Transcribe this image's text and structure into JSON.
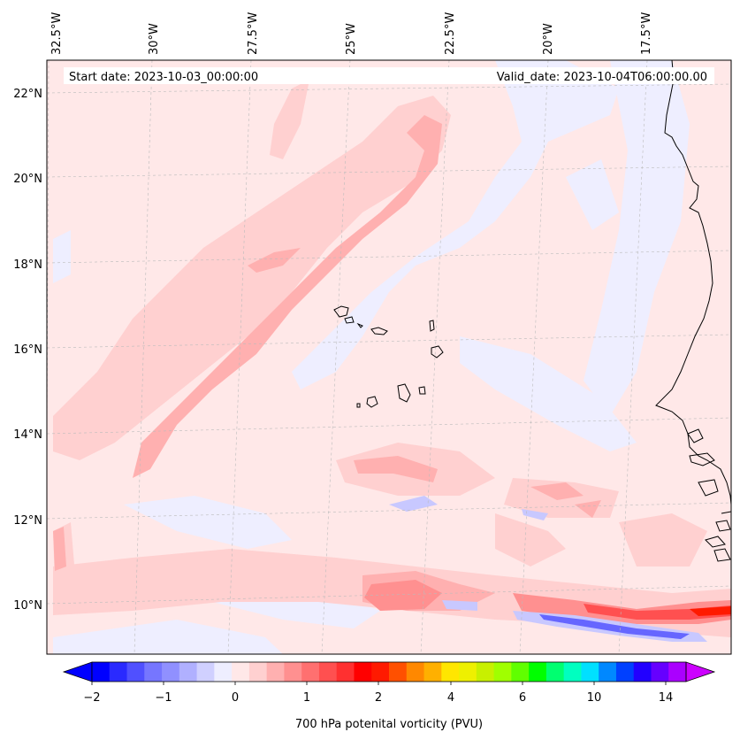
{
  "header": {
    "start_date": "Start date: 2023-10-03_00:00:00",
    "valid_date": "Valid_date: 2023-10-04T06:00:00.00"
  },
  "map": {
    "lon_labels": [
      "32.5°W",
      "30°W",
      "27.5°W",
      "25°W",
      "22.5°W",
      "20°W",
      "17.5°W"
    ],
    "lat_labels": [
      "22°N",
      "20°N",
      "18°N",
      "16°N",
      "14°N",
      "12°N",
      "10°N"
    ],
    "field_colors": {
      "background": "#ffe8e8",
      "light_pink": "#ffd0d0",
      "mid_pink": "#ffb0b0",
      "strong_pink": "#ff9090",
      "red": "#ff5050",
      "light_blue": "#eeeeff",
      "blue": "#c8c8ff",
      "deep_blue": "#6666ff"
    }
  },
  "colorbar": {
    "title": "700 hPa potenital vorticity (PVU)",
    "tick_labels": [
      "-2",
      "−1",
      "0",
      "1",
      "2",
      "4",
      "6",
      "10",
      "14"
    ],
    "tick_display": [
      "−2",
      "−1",
      "0",
      "1",
      "2",
      "4",
      "6",
      "10",
      "14"
    ],
    "colors": [
      "#0000ff",
      "#2a2aff",
      "#5050ff",
      "#7676ff",
      "#9090ff",
      "#b0b0ff",
      "#d0d0ff",
      "#eeeeff",
      "#ffe8e8",
      "#ffd0d0",
      "#ffb0b0",
      "#ff9090",
      "#ff7070",
      "#ff5050",
      "#ff3030",
      "#ff0000",
      "#ff1a00",
      "#ff5000",
      "#ff8800",
      "#ffb000",
      "#ffe600",
      "#eef000",
      "#c8f000",
      "#a0ff00",
      "#60ff00",
      "#00ff00",
      "#00ff70",
      "#00ffc0",
      "#00e0ff",
      "#0088ff",
      "#0040ff",
      "#2200ff",
      "#6600ff",
      "#aa00ff"
    ],
    "under_color": "#0000ff",
    "over_color": "#cc00ff"
  }
}
